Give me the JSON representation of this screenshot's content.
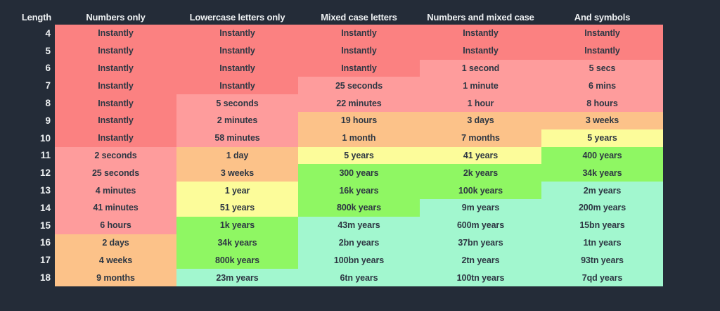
{
  "palette": {
    "background": "#242c38",
    "red": "#fb8181",
    "light_red": "#fe9c9c",
    "orange": "#fcc289",
    "yellow": "#fcfc9a",
    "green": "#8ff763",
    "mint": "#a2f7cf",
    "cell_text": "#2e3743",
    "header_text": "#edf0f2"
  },
  "chart_data": {
    "type": "table",
    "columns": [
      "Length",
      "Numbers only",
      "Lowercase letters only",
      "Mixed case letters",
      "Numbers and mixed case",
      "And symbols"
    ],
    "rows": [
      {
        "length": "4",
        "cells": [
          {
            "text": "Instantly",
            "color": "red"
          },
          {
            "text": "Instantly",
            "color": "red"
          },
          {
            "text": "Instantly",
            "color": "red"
          },
          {
            "text": "Instantly",
            "color": "red"
          },
          {
            "text": "Instantly",
            "color": "red"
          }
        ]
      },
      {
        "length": "5",
        "cells": [
          {
            "text": "Instantly",
            "color": "red"
          },
          {
            "text": "Instantly",
            "color": "red"
          },
          {
            "text": "Instantly",
            "color": "red"
          },
          {
            "text": "Instantly",
            "color": "red"
          },
          {
            "text": "Instantly",
            "color": "red"
          }
        ]
      },
      {
        "length": "6",
        "cells": [
          {
            "text": "Instantly",
            "color": "red"
          },
          {
            "text": "Instantly",
            "color": "red"
          },
          {
            "text": "Instantly",
            "color": "red"
          },
          {
            "text": "1 second",
            "color": "light_red"
          },
          {
            "text": "5 secs",
            "color": "light_red"
          }
        ]
      },
      {
        "length": "7",
        "cells": [
          {
            "text": "Instantly",
            "color": "red"
          },
          {
            "text": "Instantly",
            "color": "red"
          },
          {
            "text": "25 seconds",
            "color": "light_red"
          },
          {
            "text": "1 minute",
            "color": "light_red"
          },
          {
            "text": "6 mins",
            "color": "light_red"
          }
        ]
      },
      {
        "length": "8",
        "cells": [
          {
            "text": "Instantly",
            "color": "red"
          },
          {
            "text": "5 seconds",
            "color": "light_red"
          },
          {
            "text": "22 minutes",
            "color": "light_red"
          },
          {
            "text": "1 hour",
            "color": "light_red"
          },
          {
            "text": "8 hours",
            "color": "light_red"
          }
        ]
      },
      {
        "length": "9",
        "cells": [
          {
            "text": "Instantly",
            "color": "red"
          },
          {
            "text": "2 minutes",
            "color": "light_red"
          },
          {
            "text": "19 hours",
            "color": "orange"
          },
          {
            "text": "3 days",
            "color": "orange"
          },
          {
            "text": "3 weeks",
            "color": "orange"
          }
        ]
      },
      {
        "length": "10",
        "cells": [
          {
            "text": "Instantly",
            "color": "red"
          },
          {
            "text": "58 minutes",
            "color": "light_red"
          },
          {
            "text": "1 month",
            "color": "orange"
          },
          {
            "text": "7 months",
            "color": "orange"
          },
          {
            "text": "5 years",
            "color": "yellow"
          }
        ]
      },
      {
        "length": "11",
        "cells": [
          {
            "text": "2 seconds",
            "color": "light_red"
          },
          {
            "text": "1 day",
            "color": "orange"
          },
          {
            "text": "5 years",
            "color": "yellow"
          },
          {
            "text": "41 years",
            "color": "yellow"
          },
          {
            "text": "400 years",
            "color": "green"
          }
        ]
      },
      {
        "length": "12",
        "cells": [
          {
            "text": "25 seconds",
            "color": "light_red"
          },
          {
            "text": "3 weeks",
            "color": "orange"
          },
          {
            "text": "300 years",
            "color": "green"
          },
          {
            "text": "2k years",
            "color": "green"
          },
          {
            "text": "34k years",
            "color": "green"
          }
        ]
      },
      {
        "length": "13",
        "cells": [
          {
            "text": "4 minutes",
            "color": "light_red"
          },
          {
            "text": "1 year",
            "color": "yellow"
          },
          {
            "text": "16k years",
            "color": "green"
          },
          {
            "text": "100k years",
            "color": "green"
          },
          {
            "text": "2m years",
            "color": "mint"
          }
        ]
      },
      {
        "length": "14",
        "cells": [
          {
            "text": "41 minutes",
            "color": "light_red"
          },
          {
            "text": "51 years",
            "color": "yellow"
          },
          {
            "text": "800k years",
            "color": "green"
          },
          {
            "text": "9m years",
            "color": "mint"
          },
          {
            "text": "200m years",
            "color": "mint"
          }
        ]
      },
      {
        "length": "15",
        "cells": [
          {
            "text": "6 hours",
            "color": "light_red"
          },
          {
            "text": "1k years",
            "color": "green"
          },
          {
            "text": "43m years",
            "color": "mint"
          },
          {
            "text": "600m years",
            "color": "mint"
          },
          {
            "text": "15bn years",
            "color": "mint"
          }
        ]
      },
      {
        "length": "16",
        "cells": [
          {
            "text": "2 days",
            "color": "orange"
          },
          {
            "text": "34k years",
            "color": "green"
          },
          {
            "text": "2bn years",
            "color": "mint"
          },
          {
            "text": "37bn years",
            "color": "mint"
          },
          {
            "text": "1tn years",
            "color": "mint"
          }
        ]
      },
      {
        "length": "17",
        "cells": [
          {
            "text": "4 weeks",
            "color": "orange"
          },
          {
            "text": "800k years",
            "color": "green"
          },
          {
            "text": "100bn years",
            "color": "mint"
          },
          {
            "text": "2tn years",
            "color": "mint"
          },
          {
            "text": "93tn years",
            "color": "mint"
          }
        ]
      },
      {
        "length": "18",
        "cells": [
          {
            "text": "9 months",
            "color": "orange"
          },
          {
            "text": "23m years",
            "color": "mint"
          },
          {
            "text": "6tn years",
            "color": "mint"
          },
          {
            "text": "100tn years",
            "color": "mint"
          },
          {
            "text": "7qd years",
            "color": "mint"
          }
        ]
      }
    ]
  }
}
